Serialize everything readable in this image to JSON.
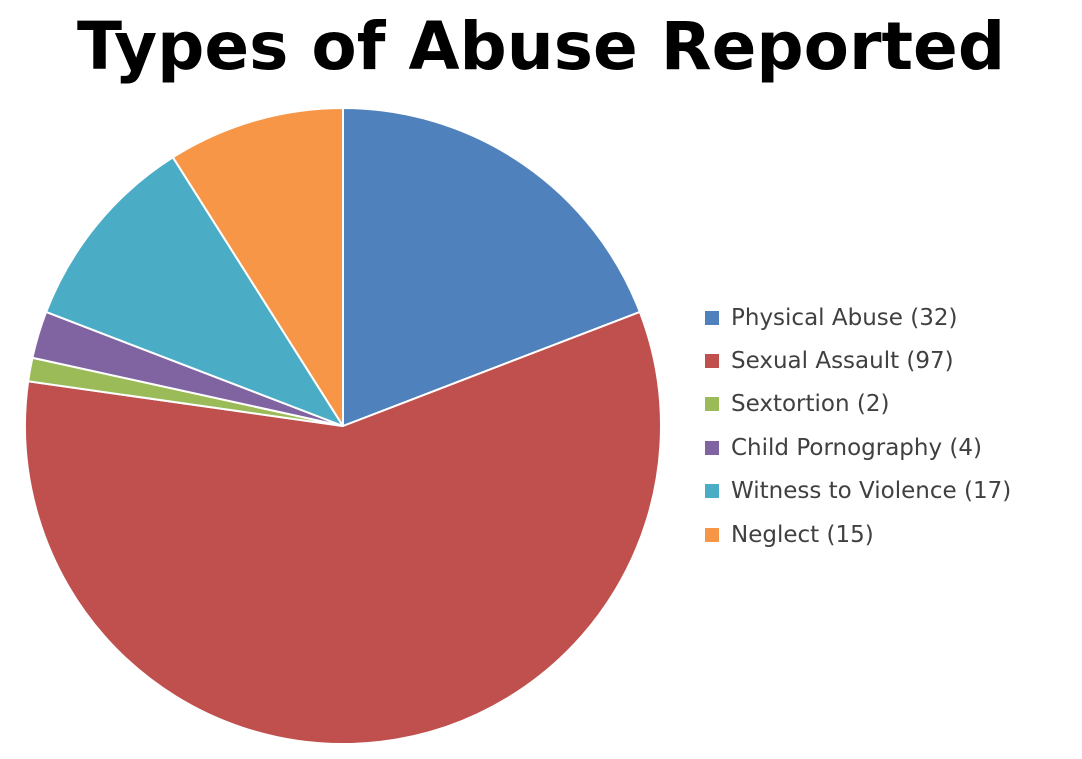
{
  "chart_data": {
    "type": "pie",
    "title": "Types of Abuse Reported",
    "legend_position": "right",
    "slices": [
      {
        "label": "Physical Abuse (32)",
        "value": 32,
        "color": "#4F81BD"
      },
      {
        "label": "Sexual Assault (97)",
        "value": 97,
        "color": "#C0504D"
      },
      {
        "label": "Sextortion (2)",
        "value": 2,
        "color": "#9BBB59"
      },
      {
        "label": "Child Pornography (4)",
        "value": 4,
        "color": "#8064A2"
      },
      {
        "label": "Witness to Violence (17)",
        "value": 17,
        "color": "#4BACC6"
      },
      {
        "label": "Neglect (15)",
        "value": 15,
        "color": "#F79646"
      }
    ]
  }
}
